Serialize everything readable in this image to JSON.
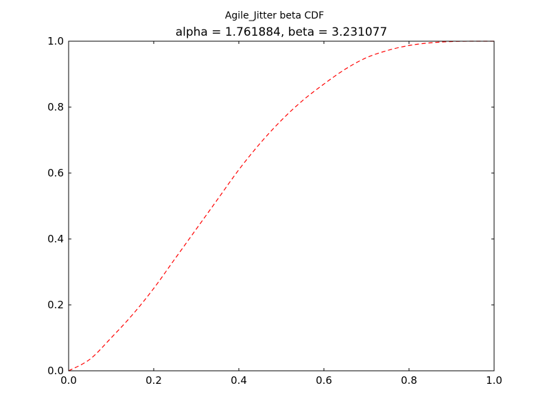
{
  "chart_data": {
    "type": "line",
    "suptitle": "Agile_Jitter beta CDF",
    "title": "alpha = 1.761884, beta = 3.231077",
    "xlabel": "",
    "ylabel": "",
    "xlim": [
      0.0,
      1.0
    ],
    "ylim": [
      0.0,
      1.0
    ],
    "x_ticks": [
      "0.0",
      "0.2",
      "0.4",
      "0.6",
      "0.8",
      "1.0"
    ],
    "y_ticks": [
      "0.0",
      "0.2",
      "0.4",
      "0.6",
      "0.8",
      "1.0"
    ],
    "grid": false,
    "legend": "none",
    "series": [
      {
        "color": "#ff0000",
        "linestyle": "dashed",
        "x": [
          0.0,
          0.05,
          0.1,
          0.15,
          0.2,
          0.25,
          0.3,
          0.35,
          0.4,
          0.45,
          0.5,
          0.55,
          0.6,
          0.65,
          0.7,
          0.75,
          0.8,
          0.85,
          0.9,
          0.95,
          1.0
        ],
        "y": [
          0.0,
          0.035,
          0.1,
          0.17,
          0.25,
          0.34,
          0.43,
          0.52,
          0.61,
          0.69,
          0.76,
          0.82,
          0.87,
          0.915,
          0.95,
          0.972,
          0.987,
          0.995,
          0.999,
          1.0,
          1.0
        ]
      }
    ]
  }
}
